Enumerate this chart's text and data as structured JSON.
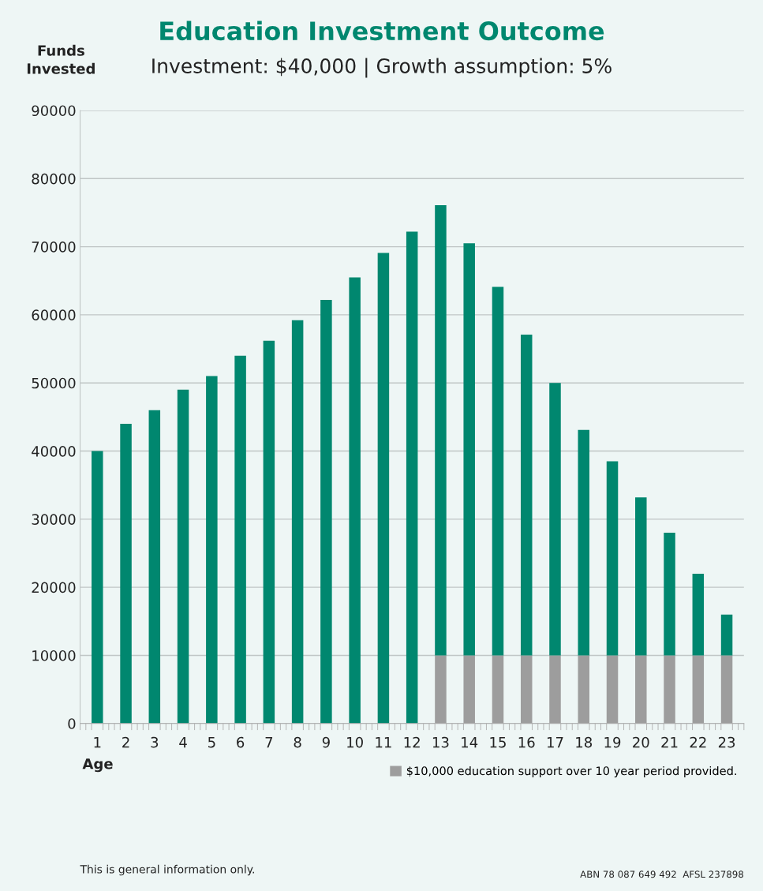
{
  "chart_data": {
    "type": "bar",
    "title": "Education Investment Outcome",
    "subtitle": "Investment: $40,000 | Growth assumption: 5%",
    "ylabel": "Funds Invested",
    "xlabel": "Age",
    "categories": [
      "1",
      "2",
      "3",
      "4",
      "5",
      "6",
      "7",
      "8",
      "9",
      "10",
      "11",
      "12",
      "13",
      "14",
      "15",
      "16",
      "17",
      "18",
      "19",
      "20",
      "21",
      "22",
      "23"
    ],
    "stacked": true,
    "series": [
      {
        "name": "$10,000 education support over 10 year period provided.",
        "color": "#9d9d9d",
        "values": [
          null,
          null,
          null,
          null,
          null,
          null,
          null,
          null,
          null,
          null,
          null,
          null,
          10000,
          10000,
          10000,
          10000,
          10000,
          10000,
          10000,
          10000,
          10000,
          10000,
          10000
        ]
      },
      {
        "color": "#00876f",
        "values": [
          40000,
          44000,
          46000,
          49000,
          51000,
          54000,
          56200,
          59200,
          62200,
          65500,
          69100,
          72200,
          66100,
          60500,
          54100,
          47100,
          40000,
          33100,
          28500,
          23200,
          18000,
          12000,
          6000
        ]
      }
    ],
    "ylim": [
      0,
      90000
    ],
    "yticks": [
      0,
      10000,
      20000,
      30000,
      40000,
      50000,
      60000,
      70000,
      80000,
      90000
    ],
    "grid": "y",
    "legend": "bottom right",
    "annotations": [
      "This is general information only.",
      "ABN 78 087 649 492  AFSL 237898"
    ]
  }
}
